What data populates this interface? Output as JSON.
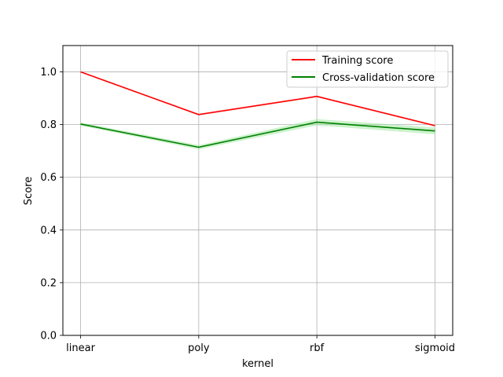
{
  "chart_data": {
    "type": "line",
    "categories": [
      "linear",
      "poly",
      "rbf",
      "sigmoid"
    ],
    "xlabel": "kernel",
    "ylabel": "Score",
    "ylim": [
      0.0,
      1.1
    ],
    "yticks": [
      0.0,
      0.2,
      0.4,
      0.6,
      0.8,
      1.0
    ],
    "ytick_labels": [
      "0.0",
      "0.2",
      "0.4",
      "0.6",
      "0.8",
      "1.0"
    ],
    "grid": true,
    "legend_position": "top-right",
    "series": [
      {
        "name": "Training score",
        "color": "#ff0000",
        "band_color": "#ffcccc",
        "values": [
          1.0,
          0.838,
          0.907,
          0.796
        ],
        "band": [
          [
            1.0,
            1.0
          ],
          [
            0.834,
            0.842
          ],
          [
            0.903,
            0.911
          ],
          [
            0.792,
            0.8
          ]
        ]
      },
      {
        "name": "Cross-validation score",
        "color": "#008000",
        "band_color": "#99e699",
        "values": [
          0.802,
          0.714,
          0.809,
          0.776
        ],
        "band": [
          [
            0.796,
            0.808
          ],
          [
            0.706,
            0.722
          ],
          [
            0.797,
            0.821
          ],
          [
            0.763,
            0.789
          ]
        ]
      }
    ]
  }
}
